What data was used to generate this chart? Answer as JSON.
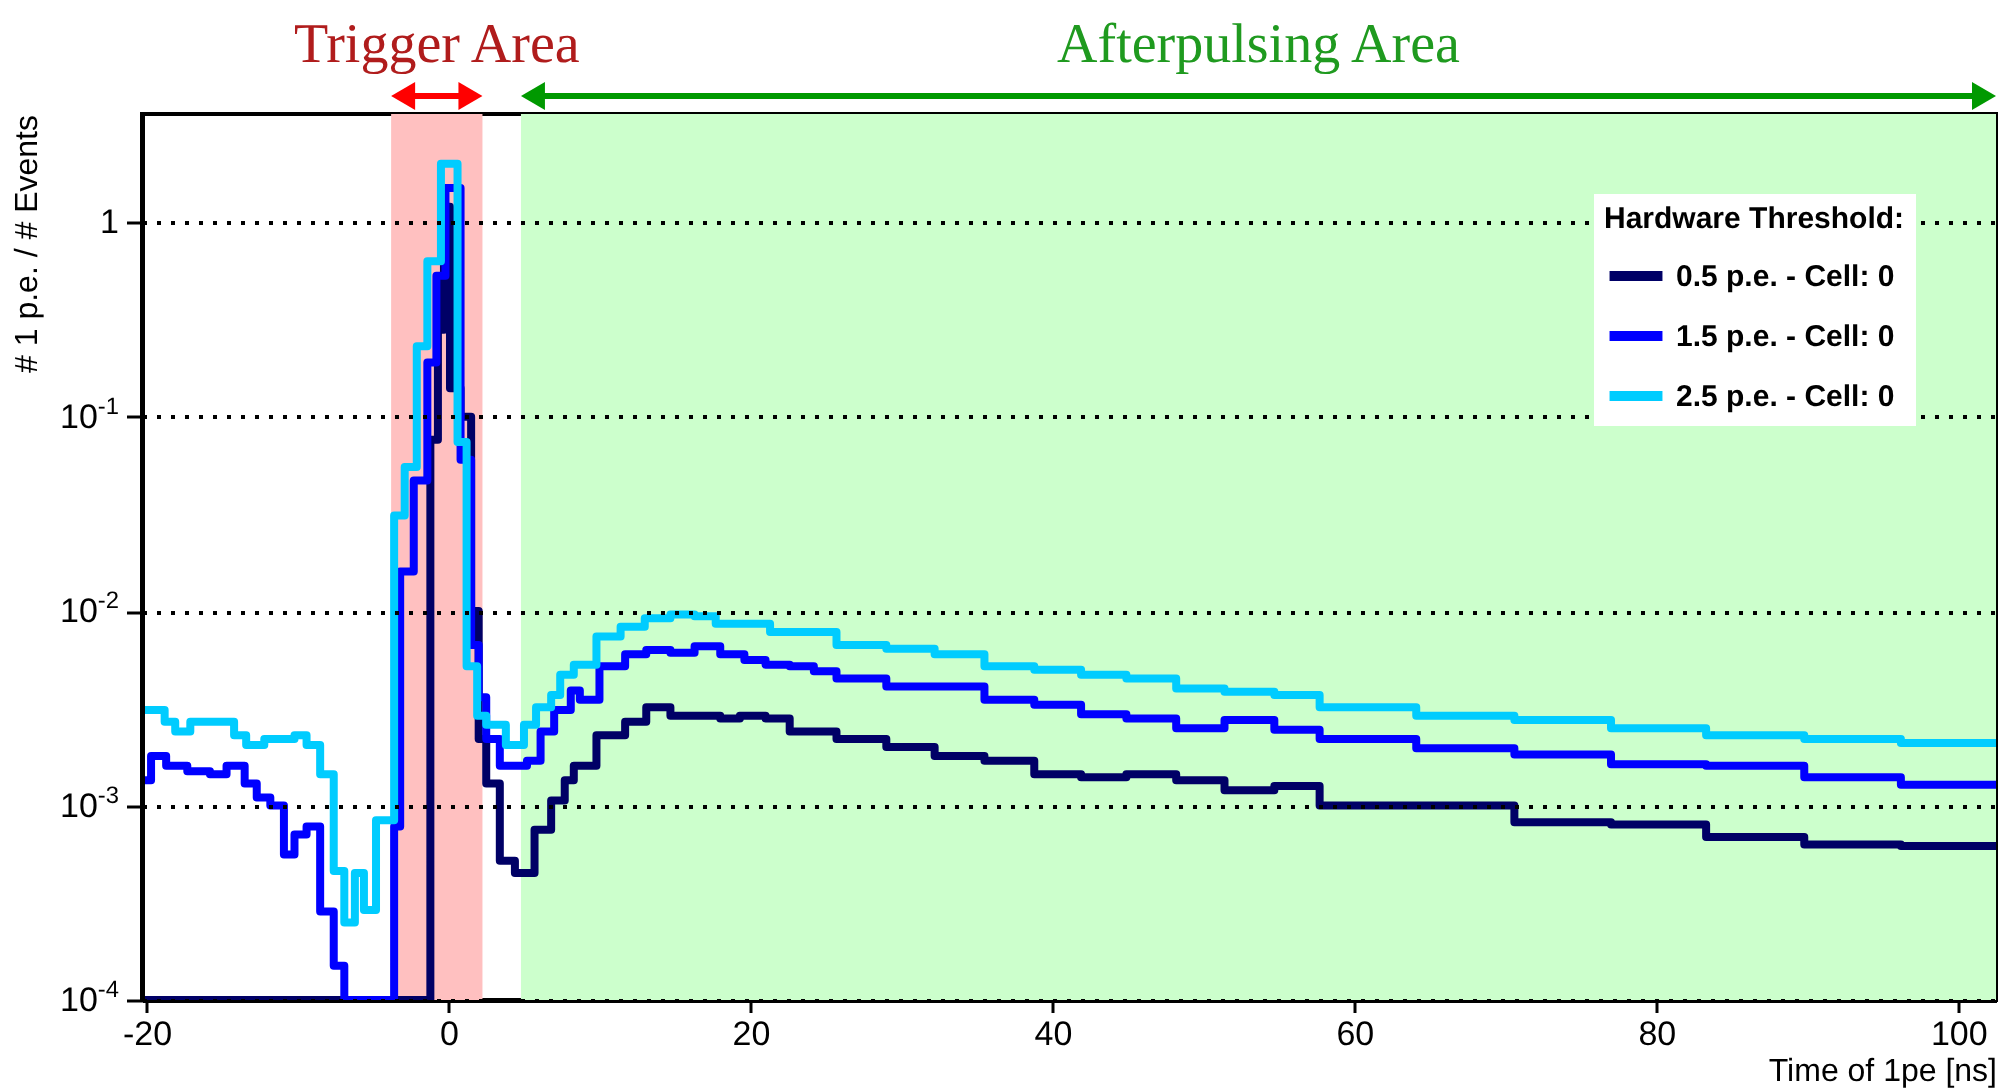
{
  "chart_data": {
    "type": "step",
    "xlabel": "Time of 1pe [ns]",
    "ylabel": "# 1 p.e. / # Events",
    "legend_title": "Hardware Threshold:",
    "log": true,
    "grid": "y",
    "legend": "top right",
    "line_style": "solid",
    "marker": "none",
    "xlim": [
      -20.3,
      102.5
    ],
    "ylim": [
      0.0001,
      3.6
    ],
    "xticks": [
      -20,
      0,
      20,
      40,
      60,
      80,
      100
    ],
    "yticks": [
      {
        "value": 0.0001,
        "label": "10$^{-4}$"
      },
      {
        "value": 0.001,
        "label": "10$^{-3}$"
      },
      {
        "value": 0.01,
        "label": "10$^{-2}$"
      },
      {
        "value": 0.1,
        "label": "10$^{-1}$"
      },
      1
    ],
    "bands": [
      {
        "axis": "x",
        "from": -3.8,
        "to": 2.25,
        "label": "Trigger Area",
        "color": "#ffc0c0"
      },
      {
        "axis": "x",
        "from": 4.8,
        "to": 102.5,
        "label": "Afterpulsing Area",
        "color": "#ccffcc"
      }
    ],
    "series": [
      {
        "name": "0.5 p.e. - Cell: 0",
        "color": "#000066",
        "x": [
          -20.3,
          -1.2,
          -0.7,
          -0.3,
          0.1,
          0.8,
          1.5,
          2.0,
          2.5,
          3.4,
          4.4,
          5.7,
          6.8,
          7.7,
          8.3,
          9.8,
          11.7,
          13.1,
          14.7,
          18,
          19.3,
          21,
          22.6,
          25.7,
          29,
          32.2,
          35.5,
          38.8,
          41.9,
          44.9,
          48.2,
          51.4,
          54.7,
          57.7,
          64.1,
          70.6,
          77,
          83.3,
          89.8,
          96.2,
          102.5
        ],
        "values": [
          0.0001,
          0.076,
          0.28,
          1.2,
          0.14,
          0.1,
          0.01,
          0.0022,
          0.0013,
          0.00052,
          0.00045,
          0.00075,
          0.00106,
          0.00135,
          0.0016,
          0.0023,
          0.0027,
          0.0032,
          0.0029,
          0.0028,
          0.0029,
          0.0028,
          0.0024,
          0.0022,
          0.002,
          0.0018,
          0.0017,
          0.00145,
          0.0014,
          0.00145,
          0.00135,
          0.0012,
          0.00126,
          0.001,
          0.001,
          0.00082,
          0.0008,
          0.00069,
          0.00063,
          0.00062,
          0.00062
        ]
      },
      {
        "name": "1.5 p.e. - Cell: 0",
        "color": "#0000ff",
        "x": [
          -20.3,
          -19.7,
          -18.7,
          -17.3,
          -15.8,
          -14.7,
          -13.5,
          -12.7,
          -11.8,
          -10.9,
          -10.2,
          -9.4,
          -8.5,
          -7.6,
          -6.9,
          -3.6,
          -3.2,
          -2.3,
          -1.4,
          -0.8,
          -0.2,
          0.8,
          1.5,
          2.0,
          2.5,
          3.4,
          5.2,
          6.1,
          7.0,
          8.1,
          8.7,
          10,
          11.7,
          13.1,
          14.7,
          16.3,
          18,
          19.6,
          21,
          22.6,
          24.2,
          25.7,
          29,
          32.2,
          35.5,
          38.8,
          41.9,
          44.9,
          48.2,
          51.4,
          54.7,
          57.7,
          64.1,
          70.6,
          77,
          83.3,
          89.8,
          96.2,
          102.5
        ],
        "values": [
          0.00135,
          0.0018,
          0.0016,
          0.0015,
          0.00145,
          0.0016,
          0.0013,
          0.0011,
          0.001,
          0.00056,
          0.00071,
          0.00078,
          0.000285,
          0.00015,
          0.0001,
          0.00078,
          0.016,
          0.047,
          0.19,
          0.53,
          1.5,
          0.06,
          0.0067,
          0.0036,
          0.0022,
          0.0016,
          0.0017,
          0.0024,
          0.0031,
          0.0039,
          0.0035,
          0.0052,
          0.006,
          0.0063,
          0.0061,
          0.0066,
          0.006,
          0.0056,
          0.0053,
          0.0052,
          0.0049,
          0.0045,
          0.0041,
          0.0041,
          0.0035,
          0.0033,
          0.00295,
          0.0028,
          0.0025,
          0.00275,
          0.00245,
          0.0022,
          0.00197,
          0.00183,
          0.00163,
          0.0016,
          0.0014,
          0.00128,
          0.00128
        ]
      },
      {
        "name": "2.5 p.e. - Cell: 0",
        "color": "#00ccff",
        "x": [
          -20.3,
          -18.8,
          -18.1,
          -17.1,
          -15.5,
          -14.2,
          -13.4,
          -12.2,
          -10.2,
          -9.4,
          -8.5,
          -7.6,
          -6.9,
          -6.2,
          -5.6,
          -4.8,
          -3.6,
          -2.9,
          -2.1,
          -1.4,
          -0.5,
          0.6,
          1.2,
          1.9,
          2.5,
          3.8,
          5.0,
          5.8,
          6.8,
          7.4,
          8.3,
          9.8,
          11.4,
          13,
          14.7,
          16.3,
          17.7,
          21.3,
          25.7,
          29,
          32.2,
          35.5,
          38.8,
          41.9,
          44.9,
          48.2,
          51.4,
          54.7,
          57.7,
          64.1,
          70.6,
          77,
          83.3,
          89.8,
          96.2,
          102.5
        ],
        "values": [
          0.0031,
          0.0027,
          0.0024,
          0.0027,
          0.0027,
          0.0023,
          0.00205,
          0.0022,
          0.0023,
          0.00205,
          0.00145,
          0.00046,
          0.00025,
          0.00045,
          0.00029,
          0.00084,
          0.031,
          0.055,
          0.23,
          0.63,
          2.0,
          0.074,
          0.0052,
          0.0029,
          0.0026,
          0.00205,
          0.0026,
          0.0032,
          0.0037,
          0.0047,
          0.0053,
          0.0074,
          0.0083,
          0.0092,
          0.0096,
          0.0094,
          0.0086,
          0.0078,
          0.0067,
          0.0064,
          0.006,
          0.0052,
          0.005,
          0.0047,
          0.0045,
          0.004,
          0.00385,
          0.0037,
          0.0032,
          0.0029,
          0.00275,
          0.0025,
          0.0023,
          0.0022,
          0.0021,
          0.0021
        ]
      }
    ]
  }
}
